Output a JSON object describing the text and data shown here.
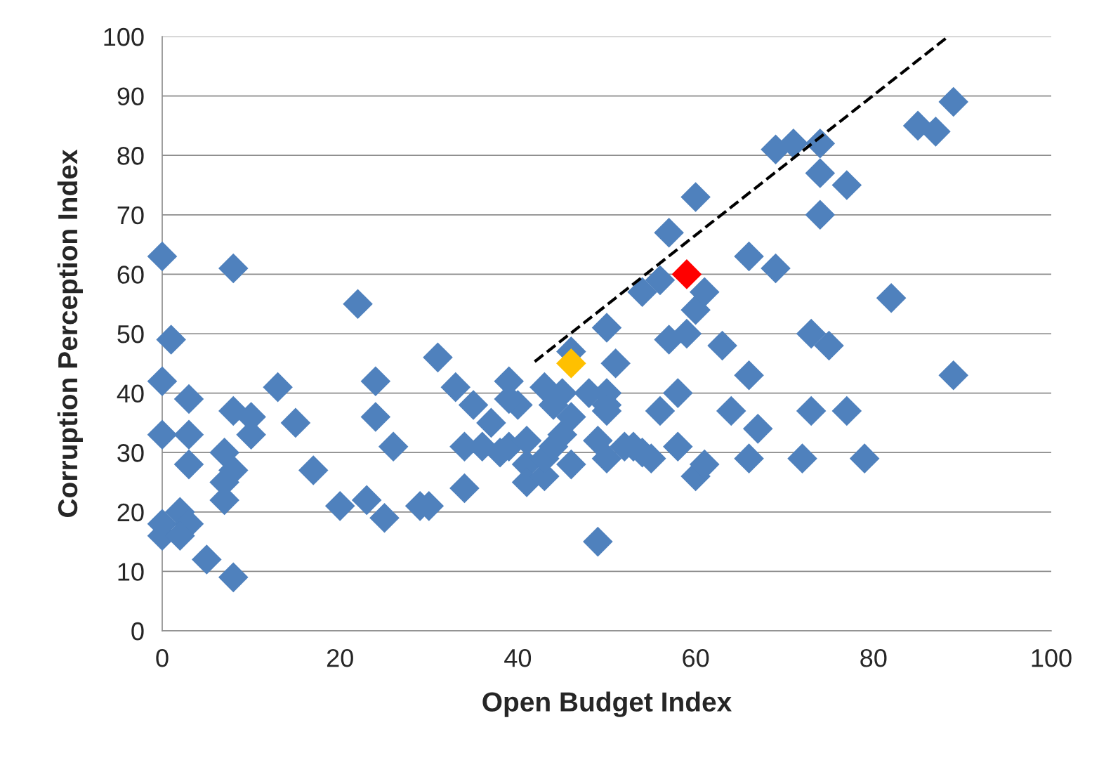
{
  "chart_data": {
    "type": "scatter",
    "xlabel": "Open Budget Index",
    "ylabel": "Corruption Perception Index",
    "xlim": [
      0,
      100
    ],
    "ylim": [
      0,
      100
    ],
    "xticks": [
      0,
      20,
      40,
      60,
      80,
      100
    ],
    "yticks": [
      0,
      10,
      20,
      30,
      40,
      50,
      60,
      70,
      80,
      90,
      100
    ],
    "grid": "y",
    "marker": "diamond",
    "legend": false,
    "series": [
      {
        "color": "#4f81bd",
        "x": [
          0,
          1,
          0,
          0,
          3,
          3,
          3,
          0,
          0,
          2,
          3,
          2,
          5,
          8,
          8,
          7,
          8,
          10,
          10,
          8,
          7,
          7,
          13,
          15,
          17,
          20,
          22,
          23,
          24,
          24,
          25,
          26,
          29,
          30,
          31,
          33,
          34,
          34,
          35,
          36,
          37,
          38,
          39,
          39,
          40,
          39,
          41,
          41,
          41,
          43,
          43,
          43,
          44,
          44,
          45,
          45,
          46,
          46,
          46,
          48,
          49,
          49,
          50,
          50,
          50,
          50,
          50,
          51,
          52,
          53,
          54,
          55,
          54,
          56,
          57,
          57,
          56,
          58,
          58,
          59,
          60,
          60,
          61,
          60,
          61,
          63,
          64,
          66,
          66,
          66,
          67,
          69,
          71,
          69,
          72,
          73,
          73,
          74,
          74,
          74,
          75,
          77,
          77,
          79,
          82,
          85,
          87,
          89,
          89
        ],
        "values": [
          63,
          49,
          42,
          33,
          39,
          33,
          28,
          18,
          16,
          20,
          18,
          16,
          12,
          9,
          61,
          30,
          37,
          36,
          33,
          27,
          25,
          22,
          41,
          35,
          27,
          21,
          55,
          22,
          42,
          36,
          19,
          31,
          21,
          21,
          46,
          41,
          31,
          24,
          38,
          31,
          35,
          30,
          42,
          31,
          38,
          39,
          28,
          25,
          32,
          41,
          26,
          29,
          31,
          38,
          40,
          33,
          36,
          47,
          28,
          40,
          15,
          32,
          51,
          40,
          38,
          37,
          29,
          45,
          31,
          31,
          30,
          29,
          57,
          59,
          67,
          49,
          37,
          40,
          31,
          50,
          73,
          54,
          57,
          26,
          28,
          48,
          37,
          63,
          43,
          29,
          34,
          81,
          82,
          61,
          29,
          50,
          37,
          82,
          77,
          70,
          48,
          75,
          37,
          29,
          56,
          85,
          84,
          89,
          43
        ]
      },
      {
        "color": "#ffc000",
        "x": [
          46
        ],
        "values": [
          45
        ]
      },
      {
        "color": "#ff0000",
        "x": [
          59
        ],
        "values": [
          60
        ]
      },
      {
        "type": "line",
        "color": "#000000",
        "line_style": "dashed",
        "marker": "none",
        "x": [
          41.9,
          88.4
        ],
        "values": [
          45.3,
          100
        ]
      }
    ]
  }
}
